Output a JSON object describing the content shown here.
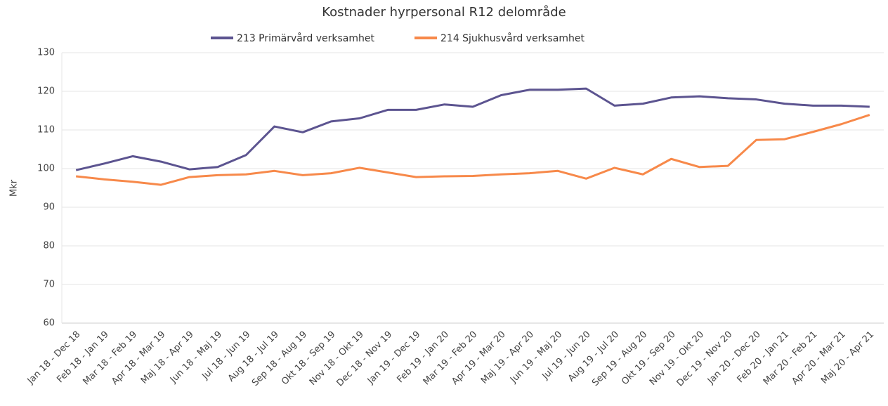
{
  "chart_data": {
    "type": "line",
    "title": "Kostnader hyrpersonal R12 delområde",
    "y_label": "Mkr",
    "categories": [
      "Jan 18 - Dec 18",
      "Feb 18 - Jan 19",
      "Mar 18 - Feb 19",
      "Apr 18 - Mar 19",
      "Maj 18 - Apr 19",
      "Jun 18 - Maj 19",
      "Jul 18 - Jun 19",
      "Aug 18 - Jul 19",
      "Sep 18 - Aug 19",
      "Okt 18 - Sep 19",
      "Nov 18 - Okt 19",
      "Dec 18 - Nov 19",
      "Jan 19 - Dec 19",
      "Feb 19 - Jan 20",
      "Mar 19 - Feb 20",
      "Apr 19 - Mar 20",
      "Maj 19 - Apr 20",
      "Jun 19 - Maj 20",
      "Jul 19 - Jun 20",
      "Aug 19 - Jul 20",
      "Sep 19 - Aug 20",
      "Okt 19 - Sep 20",
      "Nov 19 - Okt 20",
      "Dec 19 - Nov 20",
      "Jan 20 - Dec 20",
      "Feb 20 - Jan 21",
      "Mar 20 - Feb 21",
      "Apr 20 - Mar 21",
      "Maj 20 - Apr 21"
    ],
    "series": [
      {
        "name": "213 Primärvård verksamhet",
        "color": "#5c5490",
        "values": [
          99.6,
          101.3,
          103.2,
          101.8,
          99.8,
          100.4,
          103.5,
          110.9,
          109.4,
          112.2,
          113.0,
          115.2,
          115.2,
          116.6,
          116.0,
          119.0,
          120.4,
          120.4,
          120.7,
          116.3,
          116.8,
          118.4,
          118.7,
          118.2,
          117.9,
          116.8,
          116.3,
          116.3,
          116.0
        ]
      },
      {
        "name": "214 Sjukhusvård verksamhet",
        "color": "#f7894a",
        "values": [
          98.0,
          97.2,
          96.6,
          95.8,
          97.8,
          98.3,
          98.5,
          99.4,
          98.3,
          98.8,
          100.2,
          99.0,
          97.8,
          98.0,
          98.1,
          98.5,
          98.8,
          99.4,
          97.4,
          100.2,
          98.5,
          102.5,
          100.4,
          100.7,
          107.4,
          107.6,
          109.5,
          111.5,
          113.9
        ]
      }
    ],
    "ylim": [
      60,
      130
    ],
    "yticks": [
      60,
      70,
      80,
      90,
      100,
      110,
      120,
      130
    ],
    "grid": true
  }
}
